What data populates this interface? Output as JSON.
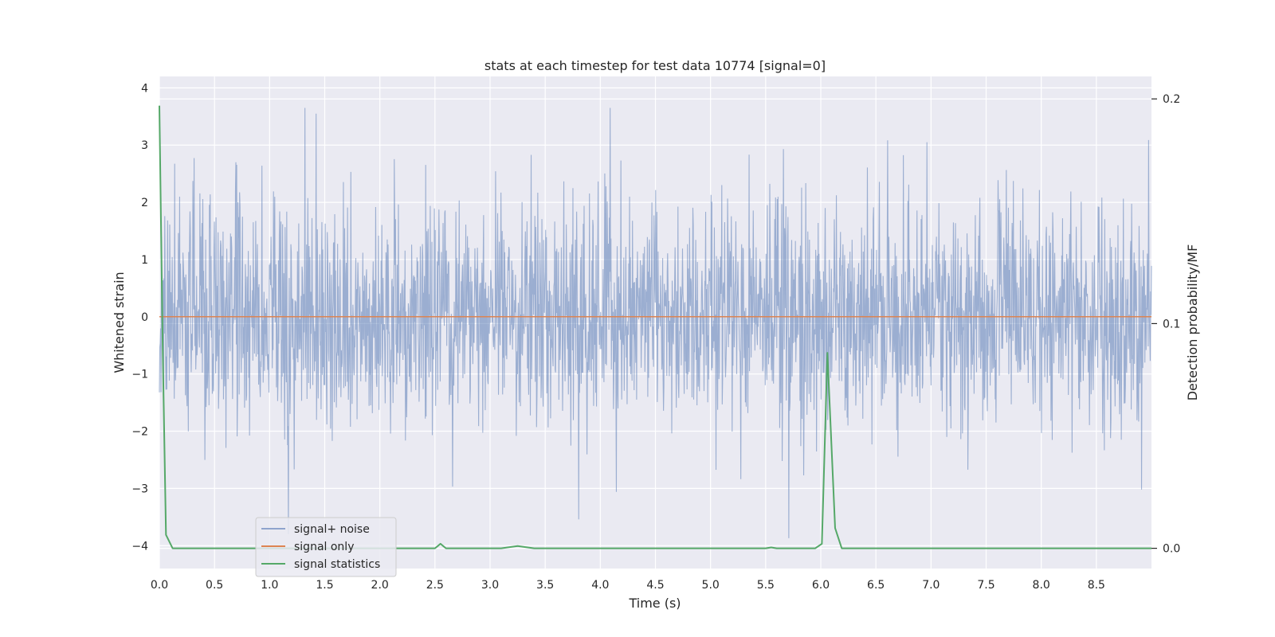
{
  "chart_data": {
    "type": "line",
    "title": "stats at each timestep for test data 10774 [signal=0]",
    "xlabel": "Time (s)",
    "ylabel": "Whitened strain",
    "y2label": "Detection probability/MF",
    "xlim": [
      0.0,
      9.0
    ],
    "ylim": [
      -4.4,
      4.2
    ],
    "y2lim": [
      -0.009,
      0.21
    ],
    "xticks": [
      "0.0",
      "0.5",
      "1.0",
      "1.5",
      "2.0",
      "2.5",
      "3.0",
      "3.5",
      "4.0",
      "4.5",
      "5.0",
      "5.5",
      "6.0",
      "6.5",
      "7.0",
      "7.5",
      "8.0",
      "8.5"
    ],
    "yticks": [
      "4",
      "3",
      "2",
      "1",
      "0",
      "−1",
      "−2",
      "−3",
      "−4"
    ],
    "y2ticks": [
      "0.2",
      "0.1",
      "0.0"
    ],
    "grid": true,
    "legend_position": "lower-left",
    "series": [
      {
        "name": "signal+ noise",
        "axis": "left",
        "color": "#4c72b0",
        "style": "dense noise, roughly Gaussian with sigma about 1, whitened strain",
        "range_estimate": [
          -3.9,
          3.7
        ],
        "notable_peaks": [
          [
            1.32,
            3.65
          ],
          [
            1.42,
            3.55
          ],
          [
            4.09,
            3.65
          ],
          [
            5.71,
            -3.87
          ],
          [
            1.17,
            -3.8
          ]
        ]
      },
      {
        "name": "signal only",
        "axis": "left",
        "color": "#dd8452",
        "x": [
          0.0,
          9.0
        ],
        "y": [
          0.0,
          0.0
        ]
      },
      {
        "name": "signal statistics",
        "axis": "right",
        "color": "#55a868",
        "x": [
          0.0,
          0.03,
          0.06,
          0.12,
          1.0,
          2.0,
          2.5,
          2.55,
          2.6,
          2.65,
          2.7,
          3.0,
          3.1,
          3.25,
          3.4,
          3.6,
          3.7,
          4.0,
          5.0,
          5.5,
          5.55,
          5.6,
          5.7,
          5.95,
          6.01,
          6.06,
          6.13,
          6.19,
          6.3,
          7.0,
          8.0,
          9.0
        ],
        "y": [
          0.197,
          0.09,
          0.006,
          0.0,
          0.0,
          0.0,
          0.0,
          0.002,
          0.0,
          0.0,
          0.0,
          0.0,
          0.0,
          0.001,
          0.0,
          0.0,
          0.0,
          0.0,
          0.0,
          0.0,
          0.0004,
          0.0,
          0.0,
          0.0,
          0.002,
          0.087,
          0.009,
          0.0,
          0.0,
          0.0,
          0.0,
          0.0
        ]
      }
    ]
  }
}
